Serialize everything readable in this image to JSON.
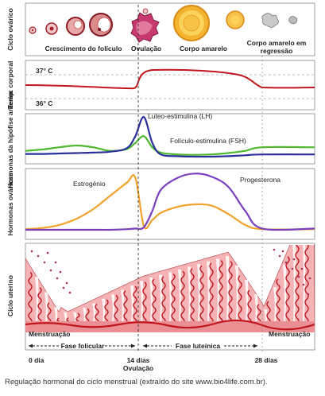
{
  "rows": {
    "ovarian_cycle": "Ciclo ovárico",
    "body_temp": "Temp. corporal",
    "pituitary_hormones": "Hormonas da hipófise anterior",
    "ovarian_hormones": "Hormonas ováricas",
    "uterine_cycle": "Ciclo uterino"
  },
  "ovary": {
    "growth": "Crescimento do folículo",
    "ovulation": "Ovulação",
    "corpus_luteum": "Corpo amarelo",
    "regression_1": "Corpo amarelo em",
    "regression_2": "regressão"
  },
  "temperature": {
    "high": "37° C",
    "low": "36° C"
  },
  "pituitary": {
    "lh": "Luteo-estimulina (LH)",
    "fsh": "Folículo-estimulina (FSH)"
  },
  "ovarian_hormones": {
    "estrogen": "Estrogénio",
    "progesterone": "Progesterona"
  },
  "uterine": {
    "menstruation_left": "Menstruação",
    "menstruation_right": "Menstruação"
  },
  "timeline": {
    "day0": "0 dia",
    "day14": "14 dias",
    "ovulation": "Ovulação",
    "day28": "28 dias",
    "follicular": "Fase folicular",
    "luteal": "Fase luteínica"
  },
  "caption": "Regulação hormonal do ciclo menstrual (extraído do site www.bio4life.com.br).",
  "colors": {
    "temperature": "#c0171f",
    "lh": "#2b2f9a",
    "fsh": "#4fb82f",
    "estrogen": "#f2a22b",
    "progesterone": "#7b3fbf",
    "endometrium": "#f5b3b6",
    "vessel": "#c0171f"
  },
  "chart_data": {
    "type": "line",
    "x": [
      0,
      2,
      4,
      6,
      8,
      10,
      12,
      13,
      14,
      15,
      16,
      18,
      20,
      22,
      24,
      26,
      28
    ],
    "xlabel": "",
    "ylabel": "",
    "series": [
      {
        "name": "Luteo-estimulina (LH)",
        "values": [
          0.15,
          0.15,
          0.16,
          0.17,
          0.18,
          0.2,
          0.28,
          0.55,
          0.98,
          0.4,
          0.14,
          0.1,
          0.09,
          0.09,
          0.1,
          0.12,
          0.14
        ]
      },
      {
        "name": "Folículo-estimulina (FSH)",
        "values": [
          0.22,
          0.25,
          0.3,
          0.34,
          0.3,
          0.22,
          0.26,
          0.4,
          0.55,
          0.3,
          0.18,
          0.14,
          0.13,
          0.14,
          0.17,
          0.22,
          0.3
        ]
      },
      {
        "name": "Estrogénio",
        "values": [
          0.05,
          0.07,
          0.12,
          0.22,
          0.38,
          0.6,
          0.82,
          0.9,
          0.1,
          0.2,
          0.32,
          0.42,
          0.46,
          0.44,
          0.3,
          0.12,
          0.05
        ]
      },
      {
        "name": "Progesterona",
        "values": [
          0.04,
          0.04,
          0.04,
          0.04,
          0.04,
          0.04,
          0.05,
          0.06,
          0.08,
          0.35,
          0.7,
          0.9,
          0.97,
          0.92,
          0.75,
          0.35,
          0.06
        ]
      }
    ]
  }
}
